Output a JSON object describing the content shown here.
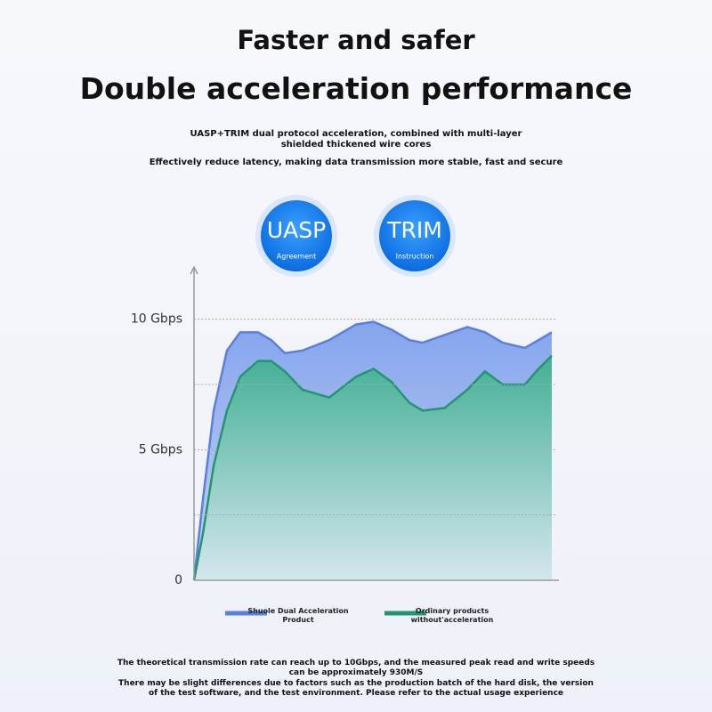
{
  "header": {
    "title": "Faster and safer",
    "headline": "Double acceleration performance",
    "description": "UASP+TRIM dual protocol acceleration, combined with multi-layer shielded thickened wire cores",
    "subdescription": "Effectively reduce latency, making data transmission more stable, fast and secure"
  },
  "badges": [
    {
      "label": "UASP",
      "caption": "Agreement"
    },
    {
      "label": "TRIM",
      "caption": "Instruction"
    }
  ],
  "chart_data": {
    "type": "area",
    "x": [
      0,
      2.5,
      5.5,
      9.2,
      12.9,
      17.9,
      21.6,
      25.4,
      30.3,
      37.8,
      45.3,
      50.2,
      55.2,
      60.2,
      63.9,
      70.1,
      76.4,
      81.3,
      86.3,
      92.5,
      96.3,
      100
    ],
    "xlim": [
      0,
      102
    ],
    "ylim": [
      0,
      12
    ],
    "yticks": [
      0,
      {
        "value": 5,
        "label": "5 Gbps"
      },
      {
        "value": 10,
        "label": "10 Gbps"
      }
    ],
    "minor_yticks": [
      2.5,
      7.5
    ],
    "grid": true,
    "series": [
      {
        "name": "Shuole Dual Acceleration Product",
        "color": "#5a7fe0",
        "values": [
          0,
          3.1,
          6.5,
          8.8,
          9.5,
          9.5,
          9.2,
          8.7,
          8.8,
          9.2,
          9.8,
          9.9,
          9.6,
          9.2,
          9.1,
          9.4,
          9.7,
          9.5,
          9.1,
          8.9,
          9.2,
          9.5
        ]
      },
      {
        "name": "Ordinary products without'acceleration",
        "color": "#23966f",
        "values": [
          0,
          1.8,
          4.4,
          6.5,
          7.8,
          8.4,
          8.4,
          8.0,
          7.3,
          7.0,
          7.8,
          8.1,
          7.6,
          6.8,
          6.5,
          6.6,
          7.3,
          8.0,
          7.5,
          7.5,
          8.1,
          8.6
        ]
      }
    ]
  },
  "footnote": [
    "The theoretical transmission rate can reach up to 10Gbps, and the measured peak read and write speeds can be approximately 930M/S",
    "There may be slight differences due to factors such as the production batch of the hard disk, the version of the test software, and the test environment. Please refer to the actual usage experience"
  ]
}
